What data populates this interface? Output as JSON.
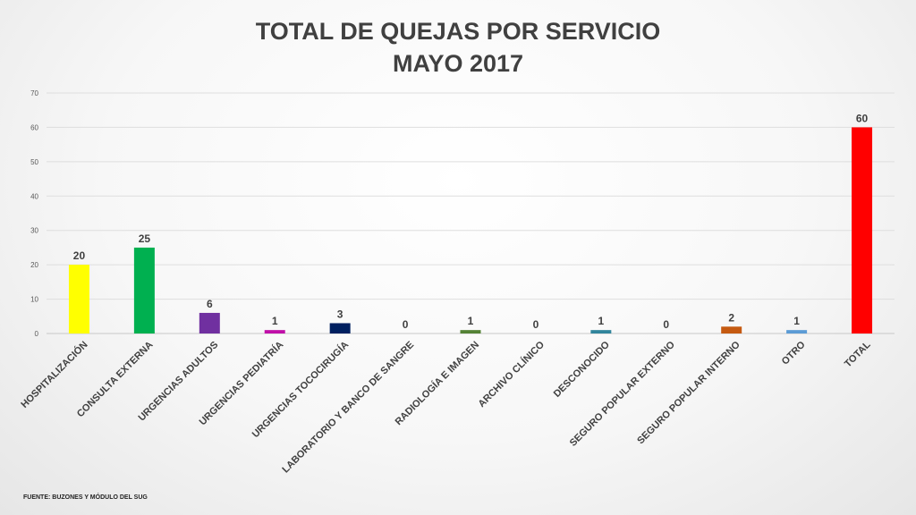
{
  "slide": {
    "title_line1": "TOTAL DE QUEJAS POR SERVICIO",
    "title_line2": "MAYO 2017",
    "footer": "FUENTE: BUZONES Y MÓDULO DEL SUG"
  },
  "chart_data": {
    "type": "bar",
    "title": "TOTAL DE QUEJAS POR SERVICIO MAYO 2017",
    "categories": [
      "HOSPITALIZACIÓN",
      "CONSULTA EXTERNA",
      "URGENCIAS ADULTOS",
      "URGENCIAS PEDIATRÍA",
      "URGENCIAS TOCOCIRUGÍA",
      "LABORATORIO Y BANCO DE SANGRE",
      "RADIOLOGÍA E IMAGEN",
      "ARCHIVO CLÍNICO",
      "DESCONOCIDO",
      "SEGURO POPULAR EXTERNO",
      "SEGURO POPULAR INTERNO",
      "OTRO",
      "TOTAL"
    ],
    "values": [
      20,
      25,
      6,
      1,
      3,
      0,
      1,
      0,
      1,
      0,
      2,
      1,
      60
    ],
    "colors": [
      "#ffff00",
      "#00b050",
      "#7030a0",
      "#c00fa8",
      "#002060",
      "#808080",
      "#548235",
      "#808080",
      "#31859c",
      "#808080",
      "#c55a11",
      "#5b9bd5",
      "#ff0000"
    ],
    "ylim": [
      0,
      70
    ],
    "yticks": [
      0,
      10,
      20,
      30,
      40,
      50,
      60,
      70
    ],
    "xlabel": "",
    "ylabel": "",
    "grid": true,
    "legend": "none"
  }
}
